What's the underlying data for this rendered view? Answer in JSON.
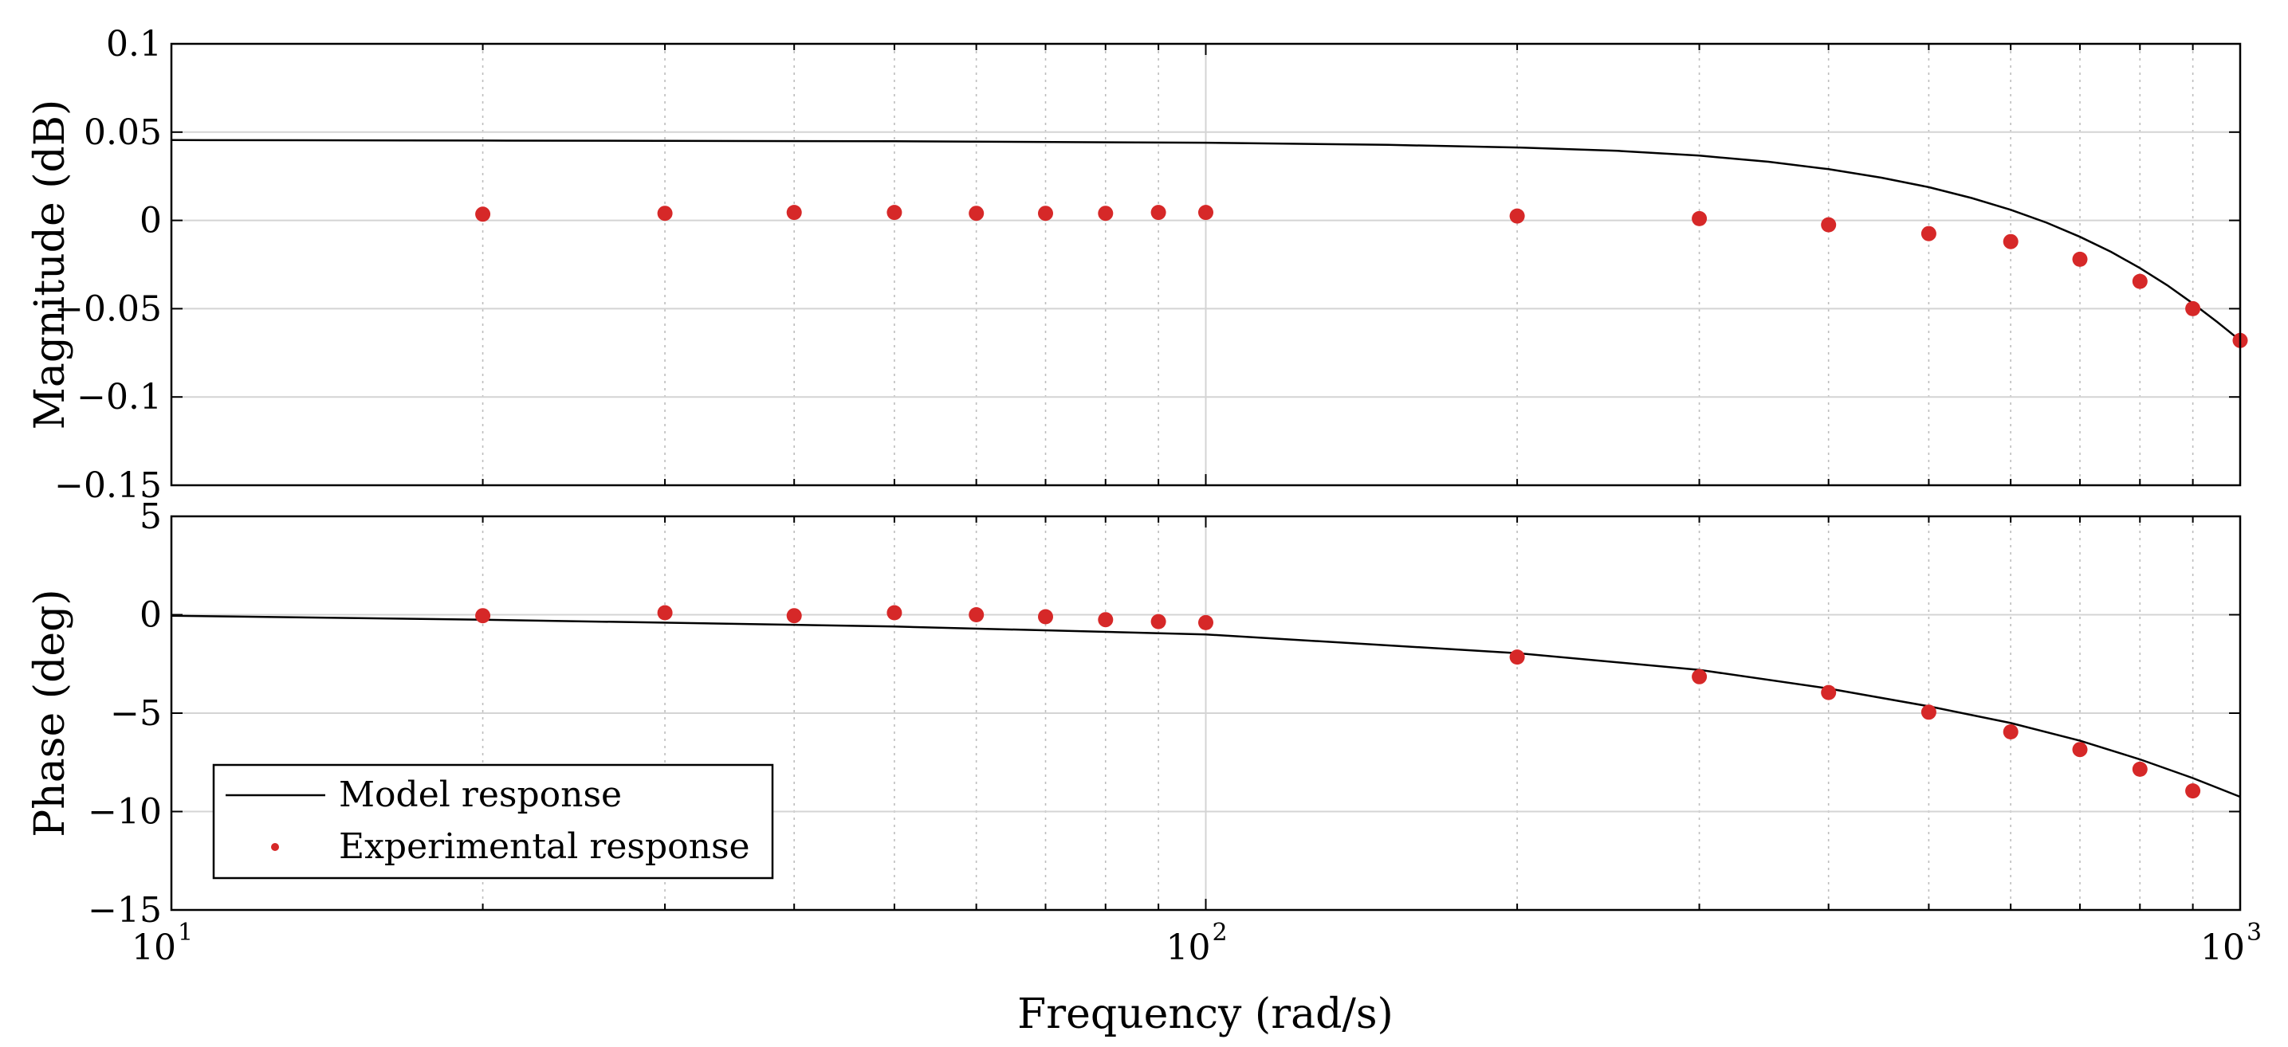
{
  "chart_data": [
    {
      "type": "line",
      "panel": "magnitude",
      "xscale": "log",
      "xlim": [
        10,
        1000
      ],
      "ylim": [
        -0.15,
        0.1
      ],
      "ylabel": "Magnitude (dB)",
      "xlabel": "",
      "grid": true,
      "yticks": [
        -0.15,
        -0.1,
        -0.05,
        0,
        0.05,
        0.1
      ],
      "ytick_labels": [
        "−0.15",
        "−0.1",
        "−0.05",
        "0",
        "0.05",
        "0.1"
      ],
      "series": [
        {
          "name": "Model response",
          "style": "line",
          "color": "#000000",
          "x": [
            10,
            20,
            50,
            100,
            150,
            200,
            250,
            300,
            350,
            400,
            450,
            500,
            550,
            600,
            650,
            700,
            750,
            800,
            850,
            900,
            950,
            1000
          ],
          "y": [
            0.0455,
            0.0452,
            0.0448,
            0.044,
            0.0428,
            0.0413,
            0.0394,
            0.0367,
            0.0332,
            0.029,
            0.0242,
            0.0188,
            0.0127,
            0.006,
            -0.0013,
            -0.0093,
            -0.0178,
            -0.027,
            -0.0367,
            -0.047,
            -0.0575,
            -0.068
          ]
        },
        {
          "name": "Experimental response",
          "style": "scatter",
          "color": "#d62828",
          "x": [
            20,
            30,
            40,
            50,
            60,
            70,
            80,
            90,
            100,
            200,
            300,
            400,
            500,
            600,
            700,
            800,
            900,
            1000
          ],
          "y": [
            0.0035,
            0.004,
            0.0045,
            0.0045,
            0.004,
            0.004,
            0.004,
            0.0045,
            0.0045,
            0.0025,
            0.001,
            -0.0025,
            -0.0075,
            -0.012,
            -0.022,
            -0.0345,
            -0.05,
            -0.068
          ]
        }
      ]
    },
    {
      "type": "line",
      "panel": "phase",
      "xscale": "log",
      "xlim": [
        10,
        1000
      ],
      "ylim": [
        -15,
        5
      ],
      "ylabel": "Phase (deg)",
      "xlabel": "Frequency (rad/s)",
      "grid": true,
      "yticks": [
        -15,
        -10,
        -5,
        0,
        5
      ],
      "ytick_labels": [
        "−15",
        "−10",
        "−5",
        "0",
        "5"
      ],
      "xtick_base": "10",
      "xtick_exponents": [
        "1",
        "2",
        "3"
      ],
      "legend": {
        "position": "bottom-left",
        "entries": [
          "Model response",
          "Experimental response"
        ]
      },
      "series": [
        {
          "name": "Model response",
          "style": "line",
          "color": "#000000",
          "x": [
            10,
            20,
            50,
            100,
            200,
            300,
            400,
            500,
            600,
            700,
            800,
            900,
            1000
          ],
          "y": [
            -0.05,
            -0.25,
            -0.6,
            -1.0,
            -1.95,
            -2.8,
            -3.75,
            -4.65,
            -5.5,
            -6.4,
            -7.35,
            -8.3,
            -9.25
          ]
        },
        {
          "name": "Experimental response",
          "style": "scatter",
          "color": "#d62828",
          "x": [
            20,
            30,
            40,
            50,
            60,
            70,
            80,
            90,
            100,
            200,
            300,
            400,
            500,
            600,
            700,
            800,
            900
          ],
          "y": [
            -0.05,
            0.1,
            -0.05,
            0.1,
            0.0,
            -0.1,
            -0.25,
            -0.35,
            -0.4,
            -2.15,
            -3.15,
            -3.95,
            -4.95,
            -5.95,
            -6.85,
            -7.85,
            -8.95
          ]
        }
      ]
    }
  ]
}
